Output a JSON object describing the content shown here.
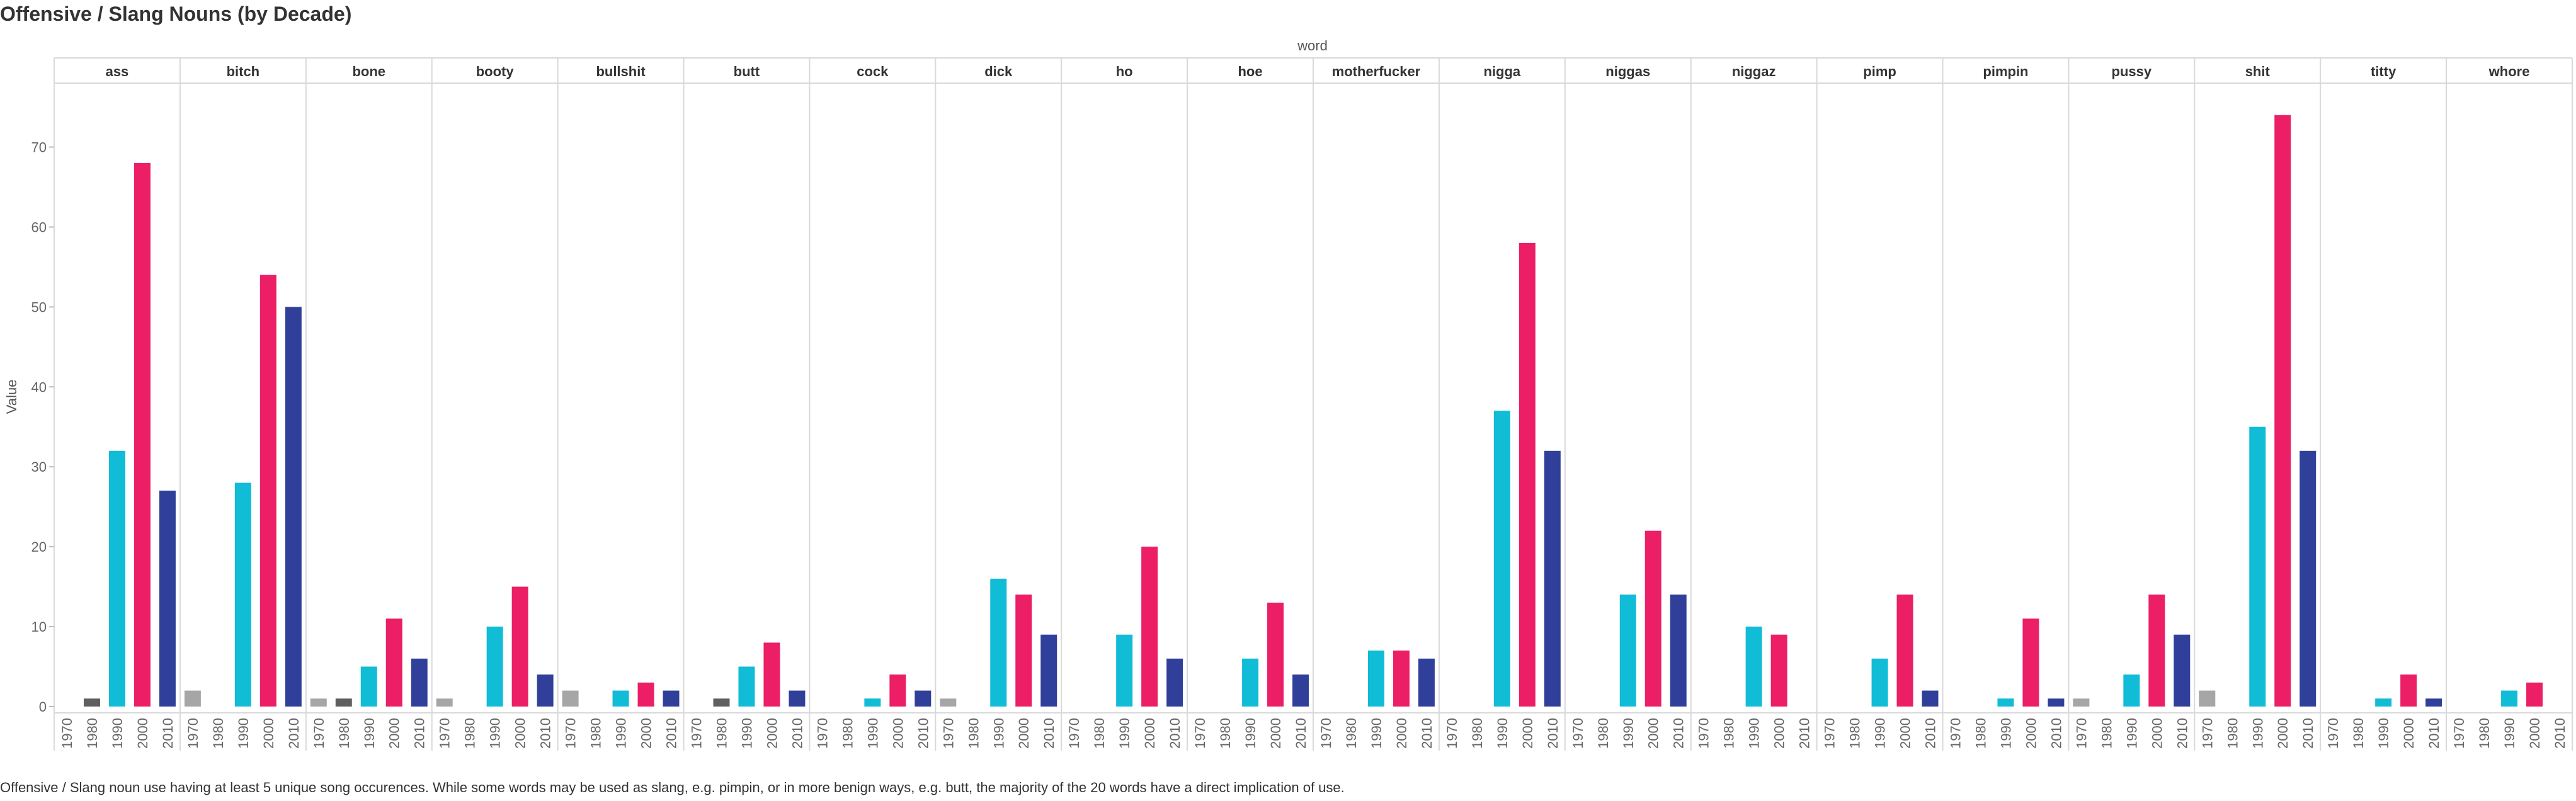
{
  "title": "Offensive / Slang Nouns (by Decade)",
  "caption": "Offensive / Slang noun use having at least 5 unique song occurences. While some words may be used as slang, e.g. pimpin, or in more benign ways, e.g. butt, the majority of the 20 words have a direct implication of use.",
  "chart_data": {
    "type": "bar",
    "facet_title": "word",
    "ylabel": "Value",
    "ylim": [
      0,
      78
    ],
    "yticks": [
      0,
      10,
      20,
      30,
      40,
      50,
      60,
      70
    ],
    "grid": false,
    "decades": [
      "1970",
      "1980",
      "1990",
      "2000",
      "2010"
    ],
    "decade_colors": [
      "#a6a6a6",
      "#5f5f5f",
      "#10bcd6",
      "#ec1e65",
      "#30409a"
    ],
    "facets": [
      {
        "word": "ass",
        "values": [
          0,
          1,
          32,
          68,
          27
        ]
      },
      {
        "word": "bitch",
        "values": [
          2,
          0,
          28,
          54,
          50
        ]
      },
      {
        "word": "bone",
        "values": [
          1,
          1,
          5,
          11,
          6
        ]
      },
      {
        "word": "booty",
        "values": [
          1,
          0,
          10,
          15,
          4
        ]
      },
      {
        "word": "bullshit",
        "values": [
          2,
          0,
          2,
          3,
          2
        ]
      },
      {
        "word": "butt",
        "values": [
          0,
          1,
          5,
          8,
          2
        ]
      },
      {
        "word": "cock",
        "values": [
          0,
          0,
          1,
          4,
          2
        ]
      },
      {
        "word": "dick",
        "values": [
          1,
          0,
          16,
          14,
          9
        ]
      },
      {
        "word": "ho",
        "values": [
          0,
          0,
          9,
          20,
          6
        ]
      },
      {
        "word": "hoe",
        "values": [
          0,
          0,
          6,
          13,
          4
        ]
      },
      {
        "word": "motherfucker",
        "values": [
          0,
          0,
          7,
          7,
          6
        ]
      },
      {
        "word": "nigga",
        "values": [
          0,
          0,
          37,
          58,
          32
        ]
      },
      {
        "word": "niggas",
        "values": [
          0,
          0,
          14,
          22,
          14
        ]
      },
      {
        "word": "niggaz",
        "values": [
          0,
          0,
          10,
          9,
          0
        ]
      },
      {
        "word": "pimp",
        "values": [
          0,
          0,
          6,
          14,
          2
        ]
      },
      {
        "word": "pimpin",
        "values": [
          0,
          0,
          1,
          11,
          1
        ]
      },
      {
        "word": "pussy",
        "values": [
          1,
          0,
          4,
          14,
          9
        ]
      },
      {
        "word": "shit",
        "values": [
          2,
          0,
          35,
          74,
          32
        ]
      },
      {
        "word": "titty",
        "values": [
          0,
          0,
          1,
          4,
          1
        ]
      },
      {
        "word": "whore",
        "values": [
          0,
          0,
          2,
          3,
          0
        ]
      }
    ]
  }
}
